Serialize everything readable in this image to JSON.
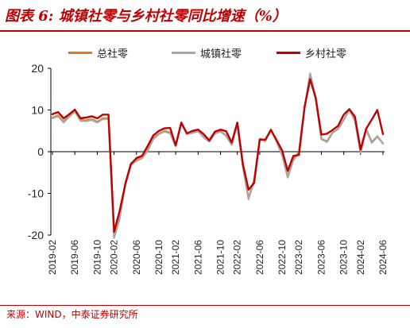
{
  "header": {
    "title": "图表 6:  城镇社零与乡村社零同比增速（%）"
  },
  "footer": {
    "source": "来源：WIND，中泰证券研究所"
  },
  "chart_data": {
    "type": "line",
    "title": "图表 6:  城镇社零与乡村社零同比增速（%）",
    "ylim": [
      -20,
      20
    ],
    "yticks": [
      20,
      10,
      0,
      -10,
      -20
    ],
    "grid": false,
    "legend_position": "top",
    "x": [
      "2019-02",
      "2019-03",
      "2019-04",
      "2019-05",
      "2019-06",
      "2019-07",
      "2019-08",
      "2019-09",
      "2019-10",
      "2019-11",
      "2019-12",
      "2020-02",
      "2020-03",
      "2020-04",
      "2020-05",
      "2020-06",
      "2020-07",
      "2020-08",
      "2020-09",
      "2020-10",
      "2020-11",
      "2020-12",
      "2021-02",
      "2021-03",
      "2021-04",
      "2021-05",
      "2021-06",
      "2021-07",
      "2021-08",
      "2021-09",
      "2021-10",
      "2021-11",
      "2021-12",
      "2022-02",
      "2022-03",
      "2022-04",
      "2022-05",
      "2022-06",
      "2022-07",
      "2022-08",
      "2022-09",
      "2022-10",
      "2022-11",
      "2022-12",
      "2023-02",
      "2023-03",
      "2023-04",
      "2023-05",
      "2023-06",
      "2023-07",
      "2023-08",
      "2023-09",
      "2023-10",
      "2023-11",
      "2023-12",
      "2024-02",
      "2024-03",
      "2024-04",
      "2024-05",
      "2024-06"
    ],
    "xtick_labels": [
      "2019-02",
      "2019-06",
      "2019-10",
      "2020-02",
      "2020-06",
      "2020-10",
      "2021-02",
      "2021-06",
      "2021-10",
      "2022-02",
      "2022-06",
      "2022-10",
      "2023-02",
      "2023-06",
      "2023-10",
      "2024-02",
      "2024-06"
    ],
    "series": [
      {
        "name": "总社零",
        "color": "#e07b1c",
        "values": [
          8.2,
          8.7,
          7.2,
          8.6,
          9.8,
          7.6,
          7.5,
          7.8,
          7.2,
          8.0,
          8.0,
          -20.5,
          -15.8,
          -7.5,
          -2.8,
          -1.8,
          -1.1,
          0.5,
          3.3,
          4.3,
          5.0,
          4.6,
          1.5,
          6.8,
          4.4,
          4.6,
          5.0,
          3.5,
          2.5,
          4.4,
          4.9,
          3.9,
          1.7,
          6.7,
          -3.5,
          -11.1,
          -6.7,
          3.1,
          2.7,
          5.4,
          2.5,
          -0.5,
          -5.9,
          -1.8,
          0.0,
          10.6,
          18.4,
          12.7,
          3.1,
          2.5,
          4.6,
          5.5,
          7.6,
          10.1,
          7.4,
          -0.1,
          5.5,
          2.3,
          3.7,
          2.0
        ]
      },
      {
        "name": "城镇社零",
        "color": "#a6a6a6",
        "values": [
          8.0,
          8.5,
          7.0,
          8.4,
          9.6,
          7.4,
          7.3,
          7.6,
          7.0,
          7.8,
          7.9,
          -20.7,
          -16.1,
          -7.9,
          -3.2,
          -2.2,
          -1.6,
          0.2,
          3.0,
          4.2,
          4.8,
          4.4,
          1.3,
          6.6,
          4.2,
          4.5,
          4.9,
          3.4,
          2.4,
          4.3,
          4.8,
          3.8,
          1.6,
          6.6,
          -3.8,
          -11.4,
          -7.0,
          3.0,
          2.5,
          5.3,
          2.4,
          -0.9,
          -6.2,
          -2.1,
          -0.1,
          10.4,
          18.8,
          13.1,
          3.0,
          2.3,
          4.5,
          5.4,
          7.6,
          10.2,
          7.4,
          -0.2,
          5.3,
          2.1,
          3.6,
          1.9
        ]
      },
      {
        "name": "乡村社零",
        "color": "#c00000",
        "values": [
          9.0,
          9.5,
          8.0,
          9.0,
          10.1,
          8.0,
          8.2,
          8.5,
          8.0,
          8.9,
          8.9,
          -19.2,
          -14.2,
          -7.8,
          -3.0,
          -1.5,
          -1.0,
          1.4,
          3.9,
          5.0,
          5.6,
          5.7,
          1.5,
          7.0,
          4.4,
          5.0,
          5.3,
          4.2,
          2.7,
          4.8,
          5.3,
          4.9,
          2.2,
          7.0,
          -3.0,
          -9.1,
          -7.5,
          2.9,
          2.9,
          5.2,
          2.8,
          0.3,
          -4.6,
          -1.0,
          -0.8,
          10.7,
          17.4,
          12.8,
          4.1,
          4.3,
          5.2,
          6.2,
          8.9,
          10.2,
          8.4,
          0.5,
          5.5,
          7.7,
          10.0,
          4.2
        ]
      }
    ]
  }
}
